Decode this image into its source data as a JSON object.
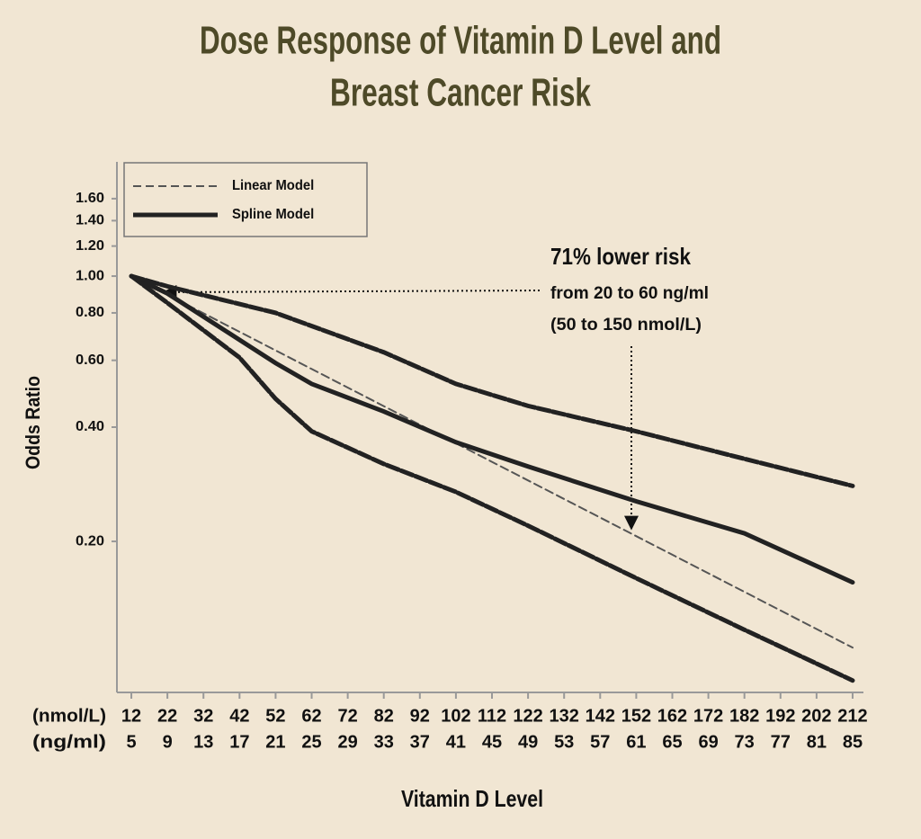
{
  "chart_data": {
    "type": "line",
    "title": [
      "Dose Response of Vitamin D Level and",
      "Breast Cancer Risk"
    ],
    "xlabel": "Vitamin D Level",
    "ylabel": "Odds Ratio",
    "log_y": true,
    "xlim": [
      8,
      215
    ],
    "ylim": [
      0.08,
      2.0
    ],
    "xticks": [
      12,
      22,
      32,
      42,
      52,
      62,
      72,
      82,
      92,
      102,
      112,
      122,
      132,
      142,
      152,
      162,
      172,
      182,
      192,
      202,
      212
    ],
    "xticks_ngml": [
      5,
      9,
      13,
      17,
      21,
      25,
      29,
      33,
      37,
      41,
      45,
      49,
      53,
      57,
      61,
      65,
      69,
      73,
      77,
      81,
      85
    ],
    "xtick_row_labels": [
      "(nmol/L)",
      "(ng/ml)"
    ],
    "yticks": [
      {
        "value": 0.2,
        "label": "0.20"
      },
      {
        "value": 0.4,
        "label": "0.40"
      },
      {
        "value": 0.6,
        "label": "0.60"
      },
      {
        "value": 0.8,
        "label": "0.80"
      },
      {
        "value": 1.0,
        "label": "1.00"
      },
      {
        "value": 1.2,
        "label": "1.20"
      },
      {
        "value": 1.4,
        "label": "1.40"
      },
      {
        "value": 1.6,
        "label": "1.60"
      }
    ],
    "legend": "upper left",
    "series": [
      {
        "name": "Linear Model",
        "style": "dashed-thin",
        "color": "#555555",
        "x": [
          12,
          212
        ],
        "values": [
          1.0,
          0.105
        ]
      },
      {
        "name": "Spline Model",
        "style": "solid-thick",
        "color": "#222222",
        "x": [
          12,
          22,
          52,
          62,
          82,
          102,
          122,
          152,
          182,
          212
        ],
        "values": [
          1.0,
          0.9,
          0.59,
          0.52,
          0.44,
          0.365,
          0.315,
          0.255,
          0.21,
          0.156
        ]
      },
      {
        "style": "dashed-thick",
        "color": "#222222",
        "x": [
          12,
          22,
          52,
          82,
          102,
          122,
          152,
          182,
          212
        ],
        "values": [
          1.0,
          0.94,
          0.8,
          0.63,
          0.52,
          0.455,
          0.39,
          0.33,
          0.28
        ]
      },
      {
        "style": "dashed-thick",
        "color": "#222222",
        "x": [
          12,
          22,
          42,
          52,
          62,
          82,
          102,
          122,
          152,
          182,
          212
        ],
        "values": [
          1.0,
          0.85,
          0.61,
          0.475,
          0.39,
          0.32,
          0.27,
          0.22,
          0.16,
          0.117,
          0.086
        ]
      }
    ],
    "annotation_lines": [
      "71% lower risk",
      "from 20 to 60 ng/ml",
      "(50 to 150 nmol/L)"
    ]
  }
}
